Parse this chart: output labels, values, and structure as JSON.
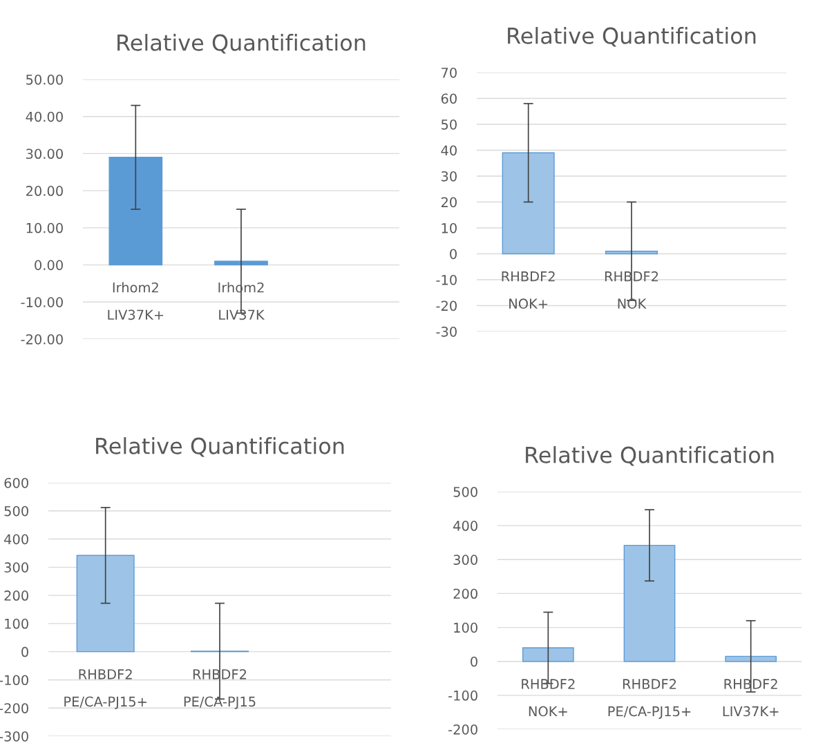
{
  "chart_data": [
    {
      "type": "bar",
      "title": "Relative Quantification",
      "categories": [
        "Irhom2\nLIV37K+",
        "Irhom2\nLIV37K",
        null
      ],
      "values": [
        29,
        1,
        null
      ],
      "errors": [
        14,
        14,
        null
      ],
      "color": "#5b9bd5",
      "ylim": [
        -20,
        50
      ],
      "yticks": [
        {
          "value": -20,
          "label": "-20.00"
        },
        {
          "value": -10,
          "label": "-10.00"
        },
        {
          "value": 0,
          "label": "0.00"
        },
        {
          "value": 10,
          "label": "10.00"
        },
        {
          "value": 20,
          "label": "20.00"
        },
        {
          "value": 30,
          "label": "30.00"
        },
        {
          "value": 40,
          "label": "40.00"
        },
        {
          "value": 50,
          "label": "50.00"
        }
      ],
      "grid": "y"
    },
    {
      "type": "bar",
      "title": "Relative Quantification",
      "categories": [
        "RHBDF2\nNOK+",
        "RHBDF2\nNOK",
        null
      ],
      "values": [
        39,
        1,
        null
      ],
      "errors": [
        19,
        19,
        null
      ],
      "color": "#9dc3e6",
      "ylim": [
        -30,
        70
      ],
      "yticks": [
        -30,
        -20,
        -10,
        0,
        10,
        20,
        30,
        40,
        50,
        60,
        70
      ],
      "grid": "y"
    },
    {
      "type": "bar",
      "title": "Relative Quantification",
      "categories": [
        "RHBDF2\nPE/CA-PJ15+",
        "RHBDF2\nPE/CA-PJ15",
        null
      ],
      "values": [
        342,
        2,
        null
      ],
      "errors": [
        170,
        170,
        null
      ],
      "color": "#9dc3e6",
      "ylim": [
        -300,
        600
      ],
      "yticks": [
        -300,
        -200,
        -100,
        0,
        100,
        200,
        300,
        400,
        500,
        600
      ],
      "grid": "y"
    },
    {
      "type": "bar",
      "title": "Relative Quantification",
      "categories": [
        "RHBDF2\nNOK+",
        "RHBDF2\nPE/CA-PJ15+",
        "RHBDF2\nLIV37K+"
      ],
      "values": [
        40,
        342,
        15
      ],
      "errors": [
        105,
        105,
        105
      ],
      "color": "#9dc3e6",
      "ylim": [
        -200,
        500
      ],
      "yticks": [
        -200,
        -100,
        0,
        100,
        200,
        300,
        400,
        500
      ],
      "grid": "y"
    }
  ]
}
